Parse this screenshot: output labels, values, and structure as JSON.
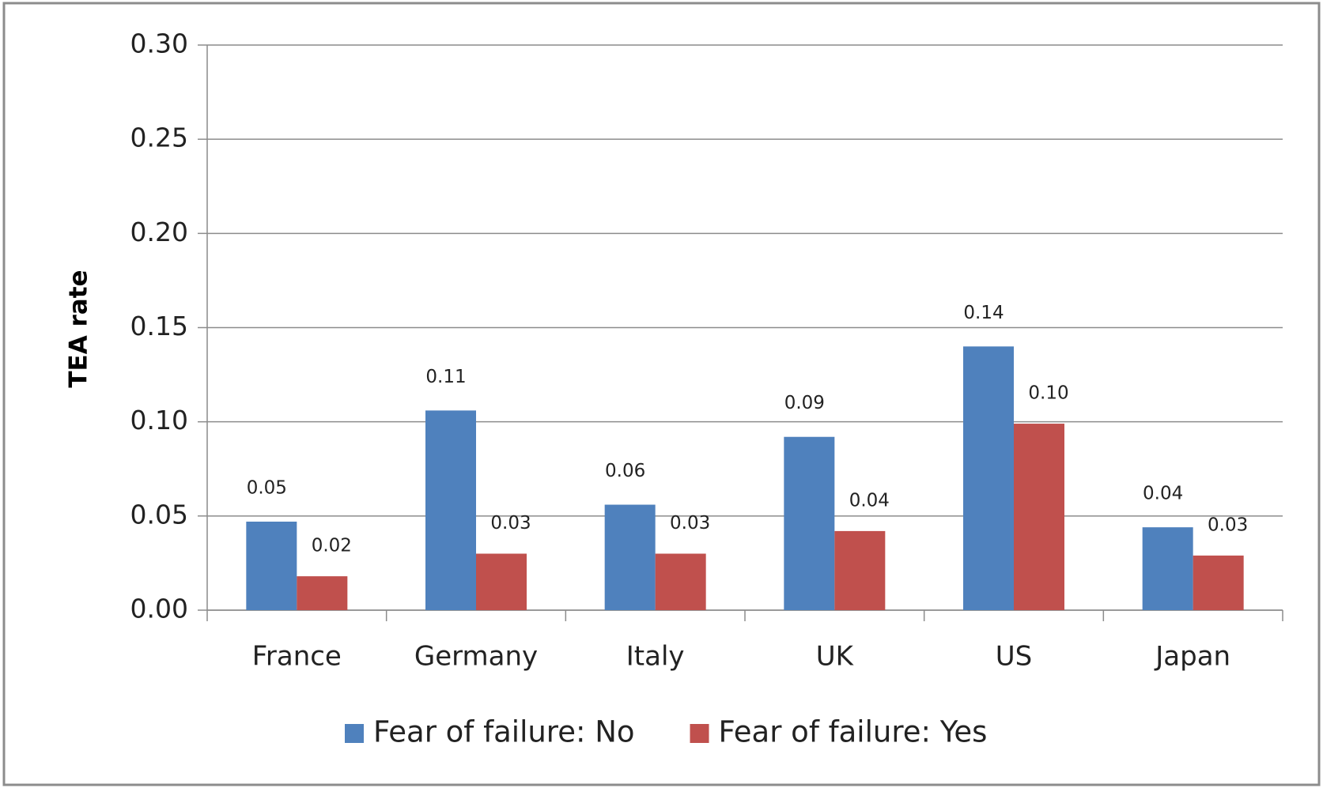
{
  "chart_data": {
    "type": "bar",
    "y_axis_label": "TEA rate",
    "categories": [
      "France",
      "Germany",
      "Italy",
      "UK",
      "US",
      "Japan"
    ],
    "series": [
      {
        "name": "Fear of failure: No",
        "color": "#4f81bd",
        "values": [
          0.047,
          0.106,
          0.056,
          0.092,
          0.14,
          0.044
        ],
        "value_labels": [
          "0.05",
          "0.11",
          "0.06",
          "0.09",
          "0.14",
          "0.04"
        ]
      },
      {
        "name": "Fear of failure: Yes",
        "color": "#c0504d",
        "values": [
          0.018,
          0.03,
          0.03,
          0.042,
          0.099,
          0.029
        ],
        "value_labels": [
          "0.02",
          "0.03",
          "0.03",
          "0.04",
          "0.10",
          "0.03"
        ]
      }
    ],
    "ylim": [
      0,
      0.3
    ],
    "yticks": [
      {
        "value": 0,
        "label": "0.00"
      },
      0.05,
      {
        "value": 0.1,
        "label": "0.10"
      },
      0.15,
      {
        "value": 0.2,
        "label": "0.20"
      },
      0.25,
      {
        "value": 0.3,
        "label": "0.30"
      }
    ],
    "grid": true,
    "legend": "bottom"
  }
}
